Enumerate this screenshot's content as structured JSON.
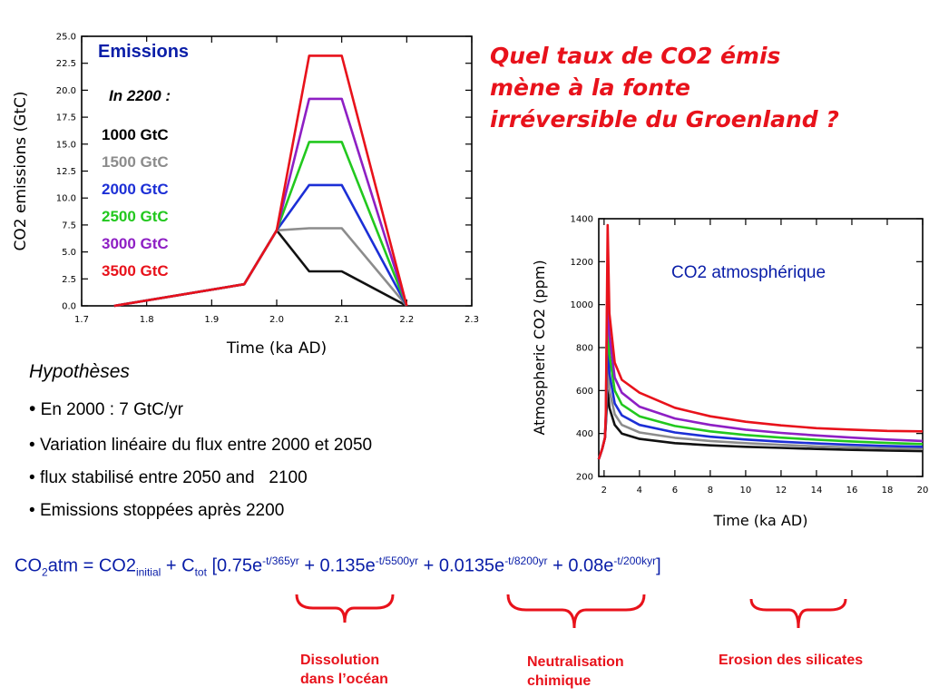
{
  "question": {
    "lines": [
      "Quel taux de CO2 émis",
      "mène à la fonte",
      "irréversible du Groenland ?"
    ],
    "color": "#e8121b"
  },
  "chart_data": [
    {
      "type": "line",
      "title": "Emissions",
      "subtitle": "In 2200 :",
      "xlabel": "Time (ka AD)",
      "ylabel": "CO2 emissions (GtC)",
      "xlim": [
        1.7,
        2.3
      ],
      "ylim": [
        0,
        25
      ],
      "x_ticks": [
        "1.7",
        "1.8",
        "1.9",
        "2.0",
        "2.1",
        "2.2",
        "2.3"
      ],
      "y_ticks": [
        "0.0",
        "2.5",
        "5.0",
        "7.5",
        "10.0",
        "12.5",
        "15.0",
        "17.5",
        "20.0",
        "22.5",
        "25.0"
      ],
      "grid": false,
      "legend_position": "upper-left",
      "series": [
        {
          "name": "1000 GtC",
          "color": "#111111",
          "x": [
            1.75,
            1.95,
            2.0,
            2.05,
            2.1,
            2.2
          ],
          "y": [
            0.0,
            2.0,
            7.0,
            3.2,
            3.2,
            0.0
          ]
        },
        {
          "name": "1500 GtC",
          "color": "#8c8c8c",
          "x": [
            1.75,
            1.95,
            2.0,
            2.05,
            2.1,
            2.2
          ],
          "y": [
            0.0,
            2.0,
            7.0,
            7.2,
            7.2,
            0.0
          ]
        },
        {
          "name": "2000 GtC",
          "color": "#1c2fd6",
          "x": [
            1.75,
            1.95,
            2.0,
            2.05,
            2.1,
            2.2
          ],
          "y": [
            0.0,
            2.0,
            7.0,
            11.2,
            11.2,
            0.0
          ]
        },
        {
          "name": "2500 GtC",
          "color": "#22c81e",
          "x": [
            1.75,
            1.95,
            2.0,
            2.05,
            2.1,
            2.2
          ],
          "y": [
            0.0,
            2.0,
            7.0,
            15.2,
            15.2,
            0.0
          ]
        },
        {
          "name": "3000 GtC",
          "color": "#8e1fc4",
          "x": [
            1.75,
            1.95,
            2.0,
            2.05,
            2.1,
            2.2
          ],
          "y": [
            0.0,
            2.0,
            7.0,
            19.2,
            19.2,
            0.0
          ]
        },
        {
          "name": "3500 GtC",
          "color": "#e8121b",
          "x": [
            1.75,
            1.95,
            2.0,
            2.05,
            2.1,
            2.2
          ],
          "y": [
            0.0,
            2.0,
            7.0,
            23.2,
            23.2,
            0.0
          ]
        }
      ]
    },
    {
      "type": "line",
      "title": "CO2 atmosphérique",
      "xlabel": "Time (ka AD)",
      "ylabel": "Atmospheric CO2 (ppm)",
      "xlim": [
        1.7,
        20
      ],
      "ylim": [
        200,
        1400
      ],
      "x_ticks": [
        "2",
        "4",
        "6",
        "8",
        "10",
        "12",
        "14",
        "16",
        "18",
        "20"
      ],
      "y_ticks": [
        "200",
        "400",
        "600",
        "800",
        "1000",
        "1200",
        "1400"
      ],
      "grid": false,
      "series": [
        {
          "name": "1000 GtC",
          "color": "#111111",
          "x": [
            1.7,
            1.9,
            2.05,
            2.1,
            2.2,
            2.3,
            2.6,
            3,
            4,
            6,
            8,
            10,
            12,
            14,
            16,
            18,
            20
          ],
          "y": [
            280,
            330,
            380,
            440,
            600,
            520,
            440,
            400,
            375,
            355,
            345,
            338,
            333,
            328,
            324,
            321,
            318
          ]
        },
        {
          "name": "1500 GtC",
          "color": "#8c8c8c",
          "x": [
            1.7,
            1.9,
            2.05,
            2.1,
            2.2,
            2.3,
            2.6,
            3,
            4,
            6,
            8,
            10,
            12,
            14,
            16,
            18,
            20
          ],
          "y": [
            280,
            330,
            380,
            450,
            740,
            600,
            490,
            440,
            405,
            380,
            365,
            355,
            347,
            340,
            335,
            331,
            328
          ]
        },
        {
          "name": "2000 GtC",
          "color": "#1c2fd6",
          "x": [
            1.7,
            1.9,
            2.05,
            2.1,
            2.2,
            2.3,
            2.6,
            3,
            4,
            6,
            8,
            10,
            12,
            14,
            16,
            18,
            20
          ],
          "y": [
            280,
            330,
            380,
            460,
            900,
            680,
            540,
            485,
            440,
            405,
            385,
            372,
            362,
            354,
            347,
            342,
            338
          ]
        },
        {
          "name": "2500 GtC",
          "color": "#22c81e",
          "x": [
            1.7,
            1.9,
            2.05,
            2.1,
            2.2,
            2.3,
            2.6,
            3,
            4,
            6,
            8,
            10,
            12,
            14,
            16,
            18,
            20
          ],
          "y": [
            280,
            330,
            380,
            470,
            1050,
            770,
            600,
            535,
            480,
            435,
            410,
            393,
            381,
            371,
            363,
            356,
            351
          ]
        },
        {
          "name": "3000 GtC",
          "color": "#8e1fc4",
          "x": [
            1.7,
            1.9,
            2.05,
            2.1,
            2.2,
            2.3,
            2.6,
            3,
            4,
            6,
            8,
            10,
            12,
            14,
            16,
            18,
            20
          ],
          "y": [
            280,
            330,
            380,
            480,
            1200,
            860,
            660,
            590,
            525,
            470,
            440,
            418,
            403,
            391,
            381,
            372,
            365
          ]
        },
        {
          "name": "3500 GtC",
          "color": "#e8121b",
          "x": [
            1.7,
            1.9,
            2.05,
            2.1,
            2.2,
            2.3,
            2.6,
            3,
            4,
            6,
            8,
            10,
            12,
            14,
            16,
            18,
            20
          ],
          "y": [
            280,
            330,
            380,
            500,
            1370,
            960,
            730,
            650,
            590,
            520,
            480,
            455,
            438,
            425,
            418,
            412,
            410
          ]
        }
      ]
    }
  ],
  "hypotheses": {
    "title": "Hypothèses",
    "items": [
      "En 2000 : 7 GtC/yr",
      "Variation linéaire du flux entre 2000 et 2050",
      "flux stabilisé entre 2050 and   2100",
      "Emissions stoppées après 2200"
    ]
  },
  "formula": {
    "co2": "CO",
    "two": "2",
    "atm_eq": "atm = CO2",
    "initial": "initial",
    "plus_c": " + C",
    "tot": "tot",
    "t1": " [0.75e",
    "e1": "-t/365yr",
    "t2": " + 0.135e",
    "e2": "-t/5500yr",
    "t3": " + 0.0135e",
    "e3": "-t/8200yr",
    "t4": " + 0.08e",
    "e4": "-t/200kyr",
    "close": "]"
  },
  "braces": {
    "labels": [
      [
        "Dissolution",
        "dans l’océan"
      ],
      [
        "Neutralisation",
        "chimique"
      ],
      [
        "Erosion des silicates"
      ]
    ],
    "color": "#e8121b"
  }
}
